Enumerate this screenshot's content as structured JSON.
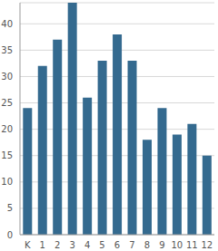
{
  "chart_data": {
    "type": "bar",
    "categories": [
      "K",
      "1",
      "2",
      "3",
      "4",
      "5",
      "6",
      "7",
      "8",
      "9",
      "10",
      "11",
      "12"
    ],
    "values": [
      24,
      32,
      37,
      44,
      26,
      33,
      38,
      33,
      18,
      24,
      19,
      21,
      15
    ],
    "color": "#346a8f",
    "ylim": [
      0,
      44
    ],
    "yticks": [
      0,
      5,
      10,
      15,
      20,
      25,
      30,
      35,
      40
    ],
    "grid": true
  }
}
